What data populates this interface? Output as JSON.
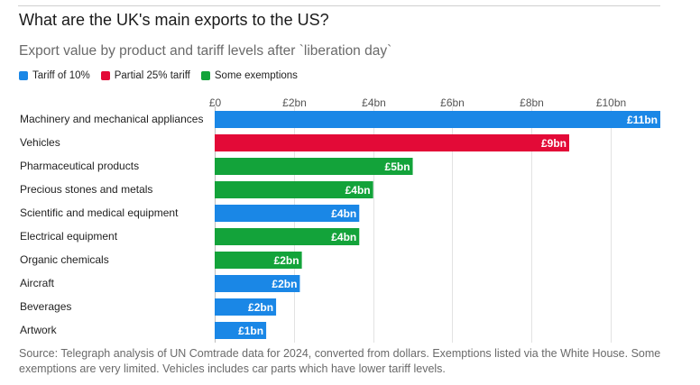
{
  "header": {
    "title": "What are the UK's main exports to the US?",
    "subtitle": "Export value by product and tariff levels after `liberation day`"
  },
  "legend": {
    "items": [
      {
        "label": "Tariff of 10%",
        "color": "#1a87e6"
      },
      {
        "label": "Partial 25% tariff",
        "color": "#e30a37"
      },
      {
        "label": "Some exemptions",
        "color": "#13a33a"
      }
    ]
  },
  "chart_data": {
    "type": "bar",
    "orientation": "horizontal",
    "title": "What are the UK's main exports to the US?",
    "subtitle": "Export value by product and tariff levels after `liberation day`",
    "categories": [
      "Machinery and mechanical appliances",
      "Vehicles",
      "Pharmaceutical products",
      "Precious stones and metals",
      "Scientific and medical equipment",
      "Electrical equipment",
      "Organic chemicals",
      "Aircraft",
      "Beverages",
      "Artwork"
    ],
    "values": [
      11.25,
      8.95,
      5.0,
      4.0,
      3.65,
      3.65,
      2.2,
      2.15,
      1.55,
      1.3
    ],
    "data_labels": [
      "£11bn",
      "£9bn",
      "£5bn",
      "£4bn",
      "£4bn",
      "£4bn",
      "£2bn",
      "£2bn",
      "£2bn",
      "£1bn"
    ],
    "tariff_group": [
      "Tariff of 10%",
      "Partial 25% tariff",
      "Some exemptions",
      "Some exemptions",
      "Tariff of 10%",
      "Some exemptions",
      "Some exemptions",
      "Tariff of 10%",
      "Tariff of 10%",
      "Tariff of 10%"
    ],
    "group_colors": {
      "Tariff of 10%": "#1a87e6",
      "Partial 25% tariff": "#e30a37",
      "Some exemptions": "#13a33a"
    },
    "x_ticks": [
      0,
      2,
      4,
      6,
      8,
      10
    ],
    "x_tick_labels": [
      "£0",
      "£2bn",
      "£4bn",
      "£6bn",
      "£8bn",
      "£10bn"
    ],
    "xlim": [
      0,
      11.25
    ],
    "unit": "£bn",
    "grid": true,
    "xlabel": "",
    "ylabel": "",
    "legend_position": "top-left"
  },
  "footer": {
    "source": "Source: Telegraph analysis of UN Comtrade data for 2024, converted from dollars. Exemptions listed via the White House. Some exemptions are very limited. Vehicles includes car parts which have lower tariff levels."
  }
}
